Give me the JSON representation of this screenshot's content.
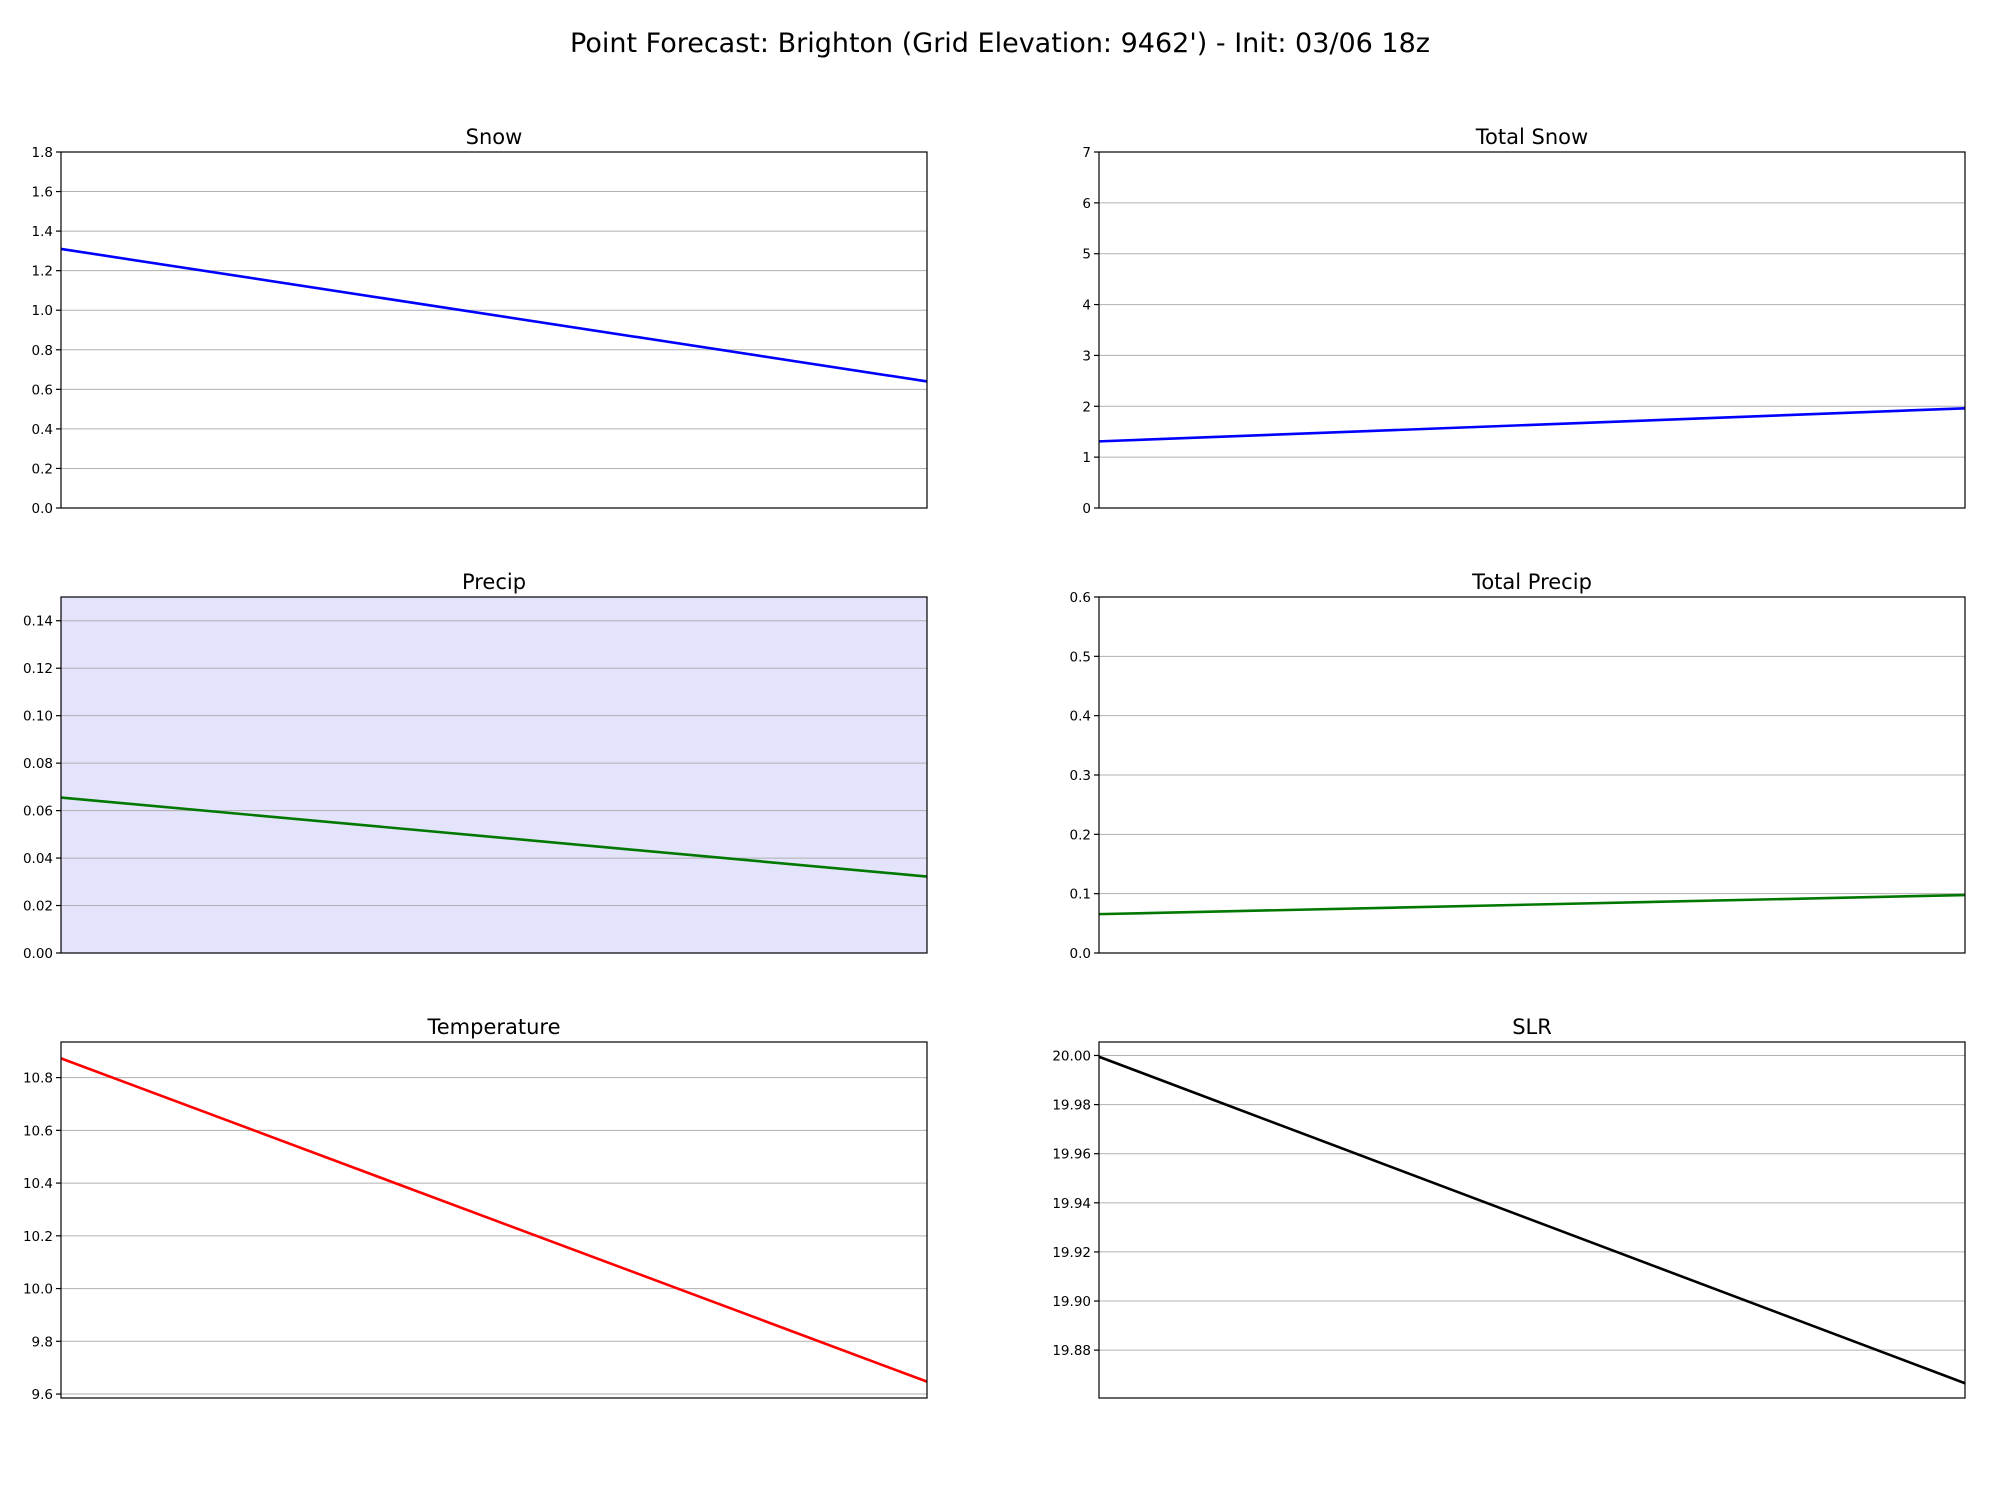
{
  "figure": {
    "title": "Point Forecast: Brighton (Grid Elevation: 9462') - Init: 03/06 18z"
  },
  "chart_data": [
    {
      "type": "line",
      "title": "Snow",
      "xlabel": "",
      "ylabel": "",
      "ylim": [
        0,
        1.8
      ],
      "yticks": [
        "0.0",
        "0.2",
        "0.4",
        "0.6",
        "0.8",
        "1.0",
        "1.2",
        "1.4",
        "1.6",
        "1.8"
      ],
      "grid": "horizontal",
      "background": "#ffffff",
      "series": [
        {
          "color": "#0000ff",
          "x": [
            0,
            1
          ],
          "values": [
            1.31,
            0.64
          ]
        }
      ]
    },
    {
      "type": "line",
      "title": "Total Snow",
      "xlabel": "",
      "ylabel": "",
      "ylim": [
        0,
        7
      ],
      "yticks": [
        "0",
        "1",
        "2",
        "3",
        "4",
        "5",
        "6",
        "7"
      ],
      "grid": "horizontal",
      "background": "#ffffff",
      "series": [
        {
          "color": "#0000ff",
          "x": [
            0,
            1
          ],
          "values": [
            1.31,
            1.96
          ]
        }
      ]
    },
    {
      "type": "line",
      "title": "Precip",
      "xlabel": "",
      "ylabel": "",
      "ylim": [
        0,
        0.15
      ],
      "yticks": [
        "0.00",
        "0.02",
        "0.04",
        "0.06",
        "0.08",
        "0.10",
        "0.12",
        "0.14"
      ],
      "grid": "horizontal",
      "background": "#e3e3fb",
      "series": [
        {
          "color": "#007800",
          "x": [
            0,
            1
          ],
          "values": [
            0.0655,
            0.0322
          ]
        }
      ]
    },
    {
      "type": "line",
      "title": "Total Precip",
      "xlabel": "",
      "ylabel": "",
      "ylim": [
        0,
        0.6
      ],
      "yticks": [
        "0.0",
        "0.1",
        "0.2",
        "0.3",
        "0.4",
        "0.5",
        "0.6"
      ],
      "grid": "horizontal",
      "background": "#ffffff",
      "series": [
        {
          "color": "#007800",
          "x": [
            0,
            1
          ],
          "values": [
            0.0655,
            0.0977
          ]
        }
      ]
    },
    {
      "type": "line",
      "title": "Temperature",
      "xlabel": "",
      "ylabel": "",
      "ylim": [
        9.585,
        10.935
      ],
      "yticks": [
        "9.6",
        "9.8",
        "10.0",
        "10.2",
        "10.4",
        "10.6",
        "10.8"
      ],
      "grid": "horizontal",
      "background": "#ffffff",
      "series": [
        {
          "color": "#ff0000",
          "x": [
            0,
            1
          ],
          "values": [
            10.873,
            9.647
          ]
        }
      ]
    },
    {
      "type": "line",
      "title": "SLR",
      "xlabel": "",
      "ylabel": "",
      "ylim": [
        19.8605,
        20.0055
      ],
      "yticks": [
        "19.88",
        "19.90",
        "19.92",
        "19.94",
        "19.96",
        "19.98",
        "20.00"
      ],
      "grid": "horizontal",
      "background": "#ffffff",
      "series": [
        {
          "color": "#000000",
          "x": [
            0,
            1
          ],
          "values": [
            19.9995,
            19.8665
          ]
        }
      ]
    }
  ]
}
